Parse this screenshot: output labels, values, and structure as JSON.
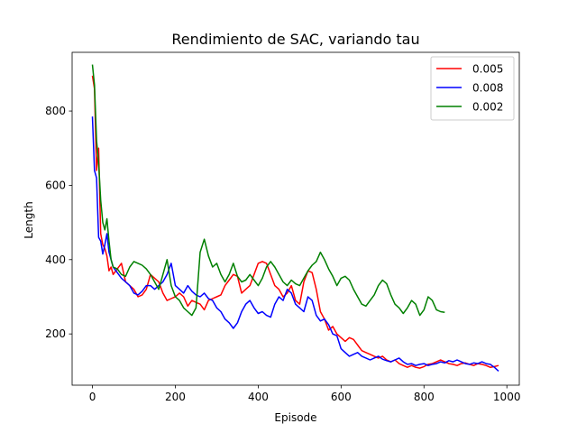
{
  "chart_data": {
    "type": "line",
    "title": "Rendimiento de SAC, variando tau",
    "xlabel": "Episode",
    "ylabel": "Length",
    "xlim": [
      -49,
      1030
    ],
    "ylim": [
      62,
      958
    ],
    "x_ticks": [
      0,
      200,
      400,
      600,
      800,
      1000
    ],
    "y_ticks": [
      200,
      400,
      600,
      800
    ],
    "grid": false,
    "legend_position": "top-right",
    "series": [
      {
        "name": "0.005",
        "color": "#ff0000",
        "points": [
          [
            0,
            895
          ],
          [
            5,
            860
          ],
          [
            10,
            640
          ],
          [
            15,
            700
          ],
          [
            20,
            470
          ],
          [
            25,
            440
          ],
          [
            30,
            430
          ],
          [
            35,
            410
          ],
          [
            40,
            370
          ],
          [
            45,
            380
          ],
          [
            50,
            360
          ],
          [
            60,
            375
          ],
          [
            70,
            390
          ],
          [
            80,
            340
          ],
          [
            90,
            330
          ],
          [
            100,
            320
          ],
          [
            110,
            300
          ],
          [
            120,
            305
          ],
          [
            130,
            320
          ],
          [
            140,
            360
          ],
          [
            150,
            350
          ],
          [
            160,
            340
          ],
          [
            170,
            310
          ],
          [
            180,
            290
          ],
          [
            190,
            295
          ],
          [
            200,
            300
          ],
          [
            210,
            310
          ],
          [
            220,
            300
          ],
          [
            230,
            275
          ],
          [
            240,
            290
          ],
          [
            250,
            285
          ],
          [
            260,
            280
          ],
          [
            270,
            265
          ],
          [
            280,
            290
          ],
          [
            290,
            295
          ],
          [
            300,
            300
          ],
          [
            310,
            305
          ],
          [
            320,
            330
          ],
          [
            330,
            345
          ],
          [
            340,
            360
          ],
          [
            350,
            355
          ],
          [
            360,
            310
          ],
          [
            370,
            320
          ],
          [
            380,
            330
          ],
          [
            390,
            360
          ],
          [
            400,
            390
          ],
          [
            410,
            395
          ],
          [
            420,
            390
          ],
          [
            430,
            360
          ],
          [
            440,
            330
          ],
          [
            450,
            320
          ],
          [
            460,
            300
          ],
          [
            470,
            310
          ],
          [
            480,
            330
          ],
          [
            490,
            290
          ],
          [
            500,
            280
          ],
          [
            510,
            340
          ],
          [
            520,
            370
          ],
          [
            530,
            365
          ],
          [
            540,
            320
          ],
          [
            550,
            260
          ],
          [
            560,
            240
          ],
          [
            570,
            210
          ],
          [
            580,
            220
          ],
          [
            590,
            200
          ],
          [
            600,
            190
          ],
          [
            610,
            180
          ],
          [
            620,
            190
          ],
          [
            630,
            185
          ],
          [
            640,
            170
          ],
          [
            650,
            155
          ],
          [
            660,
            150
          ],
          [
            670,
            145
          ],
          [
            680,
            140
          ],
          [
            690,
            135
          ],
          [
            700,
            140
          ],
          [
            710,
            130
          ],
          [
            720,
            125
          ],
          [
            730,
            130
          ],
          [
            740,
            120
          ],
          [
            750,
            115
          ],
          [
            760,
            110
          ],
          [
            770,
            115
          ],
          [
            780,
            110
          ],
          [
            790,
            108
          ],
          [
            800,
            112
          ],
          [
            810,
            118
          ],
          [
            820,
            120
          ],
          [
            830,
            125
          ],
          [
            840,
            130
          ],
          [
            850,
            125
          ],
          [
            860,
            120
          ],
          [
            870,
            118
          ],
          [
            880,
            115
          ],
          [
            890,
            120
          ],
          [
            900,
            122
          ],
          [
            910,
            118
          ],
          [
            920,
            115
          ],
          [
            930,
            120
          ],
          [
            940,
            118
          ],
          [
            950,
            115
          ],
          [
            960,
            110
          ],
          [
            970,
            112
          ],
          [
            980,
            115
          ]
        ]
      },
      {
        "name": "0.008",
        "color": "#0000ff",
        "points": [
          [
            0,
            785
          ],
          [
            5,
            640
          ],
          [
            10,
            620
          ],
          [
            15,
            460
          ],
          [
            20,
            450
          ],
          [
            25,
            415
          ],
          [
            30,
            440
          ],
          [
            35,
            470
          ],
          [
            40,
            420
          ],
          [
            45,
            400
          ],
          [
            50,
            380
          ],
          [
            60,
            365
          ],
          [
            70,
            350
          ],
          [
            80,
            340
          ],
          [
            90,
            330
          ],
          [
            100,
            310
          ],
          [
            110,
            305
          ],
          [
            120,
            315
          ],
          [
            130,
            330
          ],
          [
            140,
            330
          ],
          [
            150,
            320
          ],
          [
            160,
            330
          ],
          [
            170,
            340
          ],
          [
            180,
            360
          ],
          [
            190,
            390
          ],
          [
            200,
            330
          ],
          [
            210,
            320
          ],
          [
            220,
            310
          ],
          [
            230,
            330
          ],
          [
            240,
            315
          ],
          [
            250,
            305
          ],
          [
            260,
            300
          ],
          [
            270,
            310
          ],
          [
            280,
            295
          ],
          [
            290,
            290
          ],
          [
            300,
            270
          ],
          [
            310,
            260
          ],
          [
            320,
            240
          ],
          [
            330,
            230
          ],
          [
            340,
            215
          ],
          [
            350,
            230
          ],
          [
            360,
            260
          ],
          [
            370,
            280
          ],
          [
            380,
            290
          ],
          [
            390,
            270
          ],
          [
            400,
            255
          ],
          [
            410,
            260
          ],
          [
            420,
            250
          ],
          [
            430,
            245
          ],
          [
            440,
            280
          ],
          [
            450,
            300
          ],
          [
            460,
            290
          ],
          [
            470,
            320
          ],
          [
            480,
            310
          ],
          [
            490,
            280
          ],
          [
            500,
            270
          ],
          [
            510,
            260
          ],
          [
            520,
            300
          ],
          [
            530,
            290
          ],
          [
            540,
            250
          ],
          [
            550,
            235
          ],
          [
            560,
            240
          ],
          [
            570,
            225
          ],
          [
            580,
            200
          ],
          [
            590,
            195
          ],
          [
            600,
            160
          ],
          [
            610,
            150
          ],
          [
            620,
            140
          ],
          [
            630,
            145
          ],
          [
            640,
            150
          ],
          [
            650,
            140
          ],
          [
            660,
            135
          ],
          [
            670,
            130
          ],
          [
            680,
            135
          ],
          [
            690,
            140
          ],
          [
            700,
            132
          ],
          [
            710,
            128
          ],
          [
            720,
            125
          ],
          [
            730,
            130
          ],
          [
            740,
            135
          ],
          [
            750,
            125
          ],
          [
            760,
            118
          ],
          [
            770,
            120
          ],
          [
            780,
            115
          ],
          [
            790,
            118
          ],
          [
            800,
            120
          ],
          [
            810,
            115
          ],
          [
            820,
            118
          ],
          [
            830,
            120
          ],
          [
            840,
            125
          ],
          [
            850,
            122
          ],
          [
            860,
            128
          ],
          [
            870,
            125
          ],
          [
            880,
            130
          ],
          [
            890,
            125
          ],
          [
            900,
            120
          ],
          [
            910,
            118
          ],
          [
            920,
            122
          ],
          [
            930,
            120
          ],
          [
            940,
            125
          ],
          [
            950,
            120
          ],
          [
            960,
            118
          ],
          [
            970,
            110
          ],
          [
            980,
            100
          ]
        ]
      },
      {
        "name": "0.002",
        "color": "#008000",
        "points": [
          [
            0,
            925
          ],
          [
            5,
            870
          ],
          [
            10,
            720
          ],
          [
            15,
            660
          ],
          [
            20,
            560
          ],
          [
            25,
            500
          ],
          [
            30,
            480
          ],
          [
            35,
            510
          ],
          [
            40,
            450
          ],
          [
            45,
            400
          ],
          [
            50,
            380
          ],
          [
            60,
            375
          ],
          [
            70,
            360
          ],
          [
            80,
            355
          ],
          [
            90,
            380
          ],
          [
            100,
            395
          ],
          [
            110,
            390
          ],
          [
            120,
            385
          ],
          [
            130,
            375
          ],
          [
            140,
            360
          ],
          [
            150,
            340
          ],
          [
            160,
            320
          ],
          [
            170,
            360
          ],
          [
            180,
            400
          ],
          [
            190,
            330
          ],
          [
            200,
            300
          ],
          [
            210,
            290
          ],
          [
            220,
            270
          ],
          [
            230,
            260
          ],
          [
            240,
            250
          ],
          [
            250,
            270
          ],
          [
            260,
            420
          ],
          [
            270,
            455
          ],
          [
            280,
            410
          ],
          [
            290,
            380
          ],
          [
            300,
            390
          ],
          [
            310,
            360
          ],
          [
            320,
            340
          ],
          [
            330,
            360
          ],
          [
            340,
            390
          ],
          [
            350,
            355
          ],
          [
            360,
            340
          ],
          [
            370,
            345
          ],
          [
            380,
            360
          ],
          [
            390,
            345
          ],
          [
            400,
            330
          ],
          [
            410,
            350
          ],
          [
            420,
            380
          ],
          [
            430,
            395
          ],
          [
            440,
            380
          ],
          [
            450,
            360
          ],
          [
            460,
            340
          ],
          [
            470,
            330
          ],
          [
            480,
            345
          ],
          [
            490,
            335
          ],
          [
            500,
            330
          ],
          [
            510,
            350
          ],
          [
            520,
            370
          ],
          [
            530,
            385
          ],
          [
            540,
            395
          ],
          [
            550,
            420
          ],
          [
            560,
            400
          ],
          [
            570,
            375
          ],
          [
            580,
            355
          ],
          [
            590,
            330
          ],
          [
            600,
            350
          ],
          [
            610,
            355
          ],
          [
            620,
            345
          ],
          [
            630,
            320
          ],
          [
            640,
            300
          ],
          [
            650,
            280
          ],
          [
            660,
            275
          ],
          [
            670,
            290
          ],
          [
            680,
            305
          ],
          [
            690,
            330
          ],
          [
            700,
            345
          ],
          [
            710,
            335
          ],
          [
            720,
            305
          ],
          [
            730,
            280
          ],
          [
            740,
            270
          ],
          [
            750,
            255
          ],
          [
            760,
            270
          ],
          [
            770,
            290
          ],
          [
            780,
            280
          ],
          [
            790,
            250
          ],
          [
            800,
            265
          ],
          [
            810,
            300
          ],
          [
            820,
            290
          ],
          [
            830,
            265
          ],
          [
            840,
            260
          ],
          [
            850,
            258
          ]
        ]
      }
    ]
  }
}
